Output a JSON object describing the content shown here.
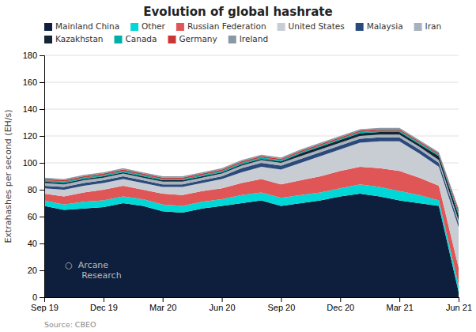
{
  "chart_data": {
    "type": "area",
    "stacked": true,
    "title": "Evolution of global hashrate",
    "y_label": "Extrahashes per second (EH/s)",
    "annotations": [
      "Source: CBEO",
      "○  Arcane\n      Research"
    ],
    "categories": [
      "Sep 19",
      null,
      null,
      "Dec 19",
      null,
      null,
      "Mar 20",
      null,
      null,
      "Jun 20",
      null,
      null,
      "Sep 20",
      null,
      null,
      "Dec 20",
      null,
      null,
      "Mar 21",
      null,
      null,
      "Jun 21"
    ],
    "series": [
      {
        "name": "Mainland China",
        "color": "#0d1f3c",
        "values": [
          68,
          65,
          66,
          67,
          70,
          68,
          64,
          63,
          66,
          68,
          70,
          72,
          68,
          70,
          72,
          75,
          77,
          75,
          72,
          70,
          68,
          4
        ]
      },
      {
        "name": "Other",
        "color": "#00d8d8",
        "values": [
          4,
          4,
          5,
          5,
          5,
          5,
          5,
          5,
          5,
          5,
          6,
          6,
          6,
          6,
          6,
          6,
          7,
          7,
          7,
          6,
          4,
          5
        ]
      },
      {
        "name": "Russian Federation",
        "color": "#e05555",
        "values": [
          5,
          6,
          7,
          8,
          8,
          7,
          8,
          8,
          8,
          8,
          9,
          10,
          10,
          11,
          12,
          13,
          13,
          14,
          15,
          13,
          11,
          13
        ]
      },
      {
        "name": "United States",
        "color": "#c8cdd4",
        "values": [
          4,
          5,
          5,
          5,
          5,
          5,
          5,
          6,
          6,
          7,
          8,
          9,
          11,
          13,
          15,
          16,
          18,
          20,
          22,
          18,
          14,
          30
        ]
      },
      {
        "name": "Malaysia",
        "color": "#2a4a7c",
        "values": [
          2,
          2,
          2,
          2,
          2,
          2,
          2,
          2,
          2,
          2,
          3,
          3,
          3,
          3,
          3,
          3,
          3,
          3,
          3,
          3,
          3,
          3
        ]
      },
      {
        "name": "Iran",
        "color": "#a8b2bc",
        "values": [
          2,
          2,
          2,
          2,
          2,
          2,
          2,
          2,
          2,
          2,
          2,
          2,
          2,
          2,
          2,
          2,
          2,
          2,
          2,
          2,
          2,
          2
        ]
      },
      {
        "name": "Kazakhstan",
        "color": "#152535",
        "values": [
          1,
          1,
          1,
          1,
          1,
          1,
          1,
          1,
          1,
          1,
          1,
          1,
          1,
          2,
          2,
          2,
          2,
          2,
          2,
          2,
          3,
          4
        ]
      },
      {
        "name": "Canada",
        "color": "#00b0a8",
        "values": [
          1,
          1,
          1,
          1,
          1,
          1,
          1,
          1,
          1,
          1,
          1,
          1,
          1,
          1,
          1,
          1,
          1,
          1,
          1,
          1,
          1,
          2
        ]
      },
      {
        "name": "Germany",
        "color": "#cc3535",
        "values": [
          1,
          1,
          1,
          1,
          1,
          1,
          1,
          1,
          1,
          1,
          1,
          1,
          1,
          1,
          1,
          1,
          1,
          1,
          1,
          1,
          1,
          2
        ]
      },
      {
        "name": "Ireland",
        "color": "#8a98a4",
        "values": [
          1,
          1,
          1,
          1,
          1,
          1,
          1,
          1,
          1,
          1,
          1,
          1,
          1,
          1,
          1,
          1,
          1,
          1,
          1,
          1,
          1,
          1
        ]
      }
    ],
    "ylim": [
      0,
      180
    ],
    "yticks": [
      0,
      20,
      40,
      60,
      80,
      100,
      120,
      140,
      160,
      180
    ],
    "grid": true,
    "legend": "top left"
  }
}
